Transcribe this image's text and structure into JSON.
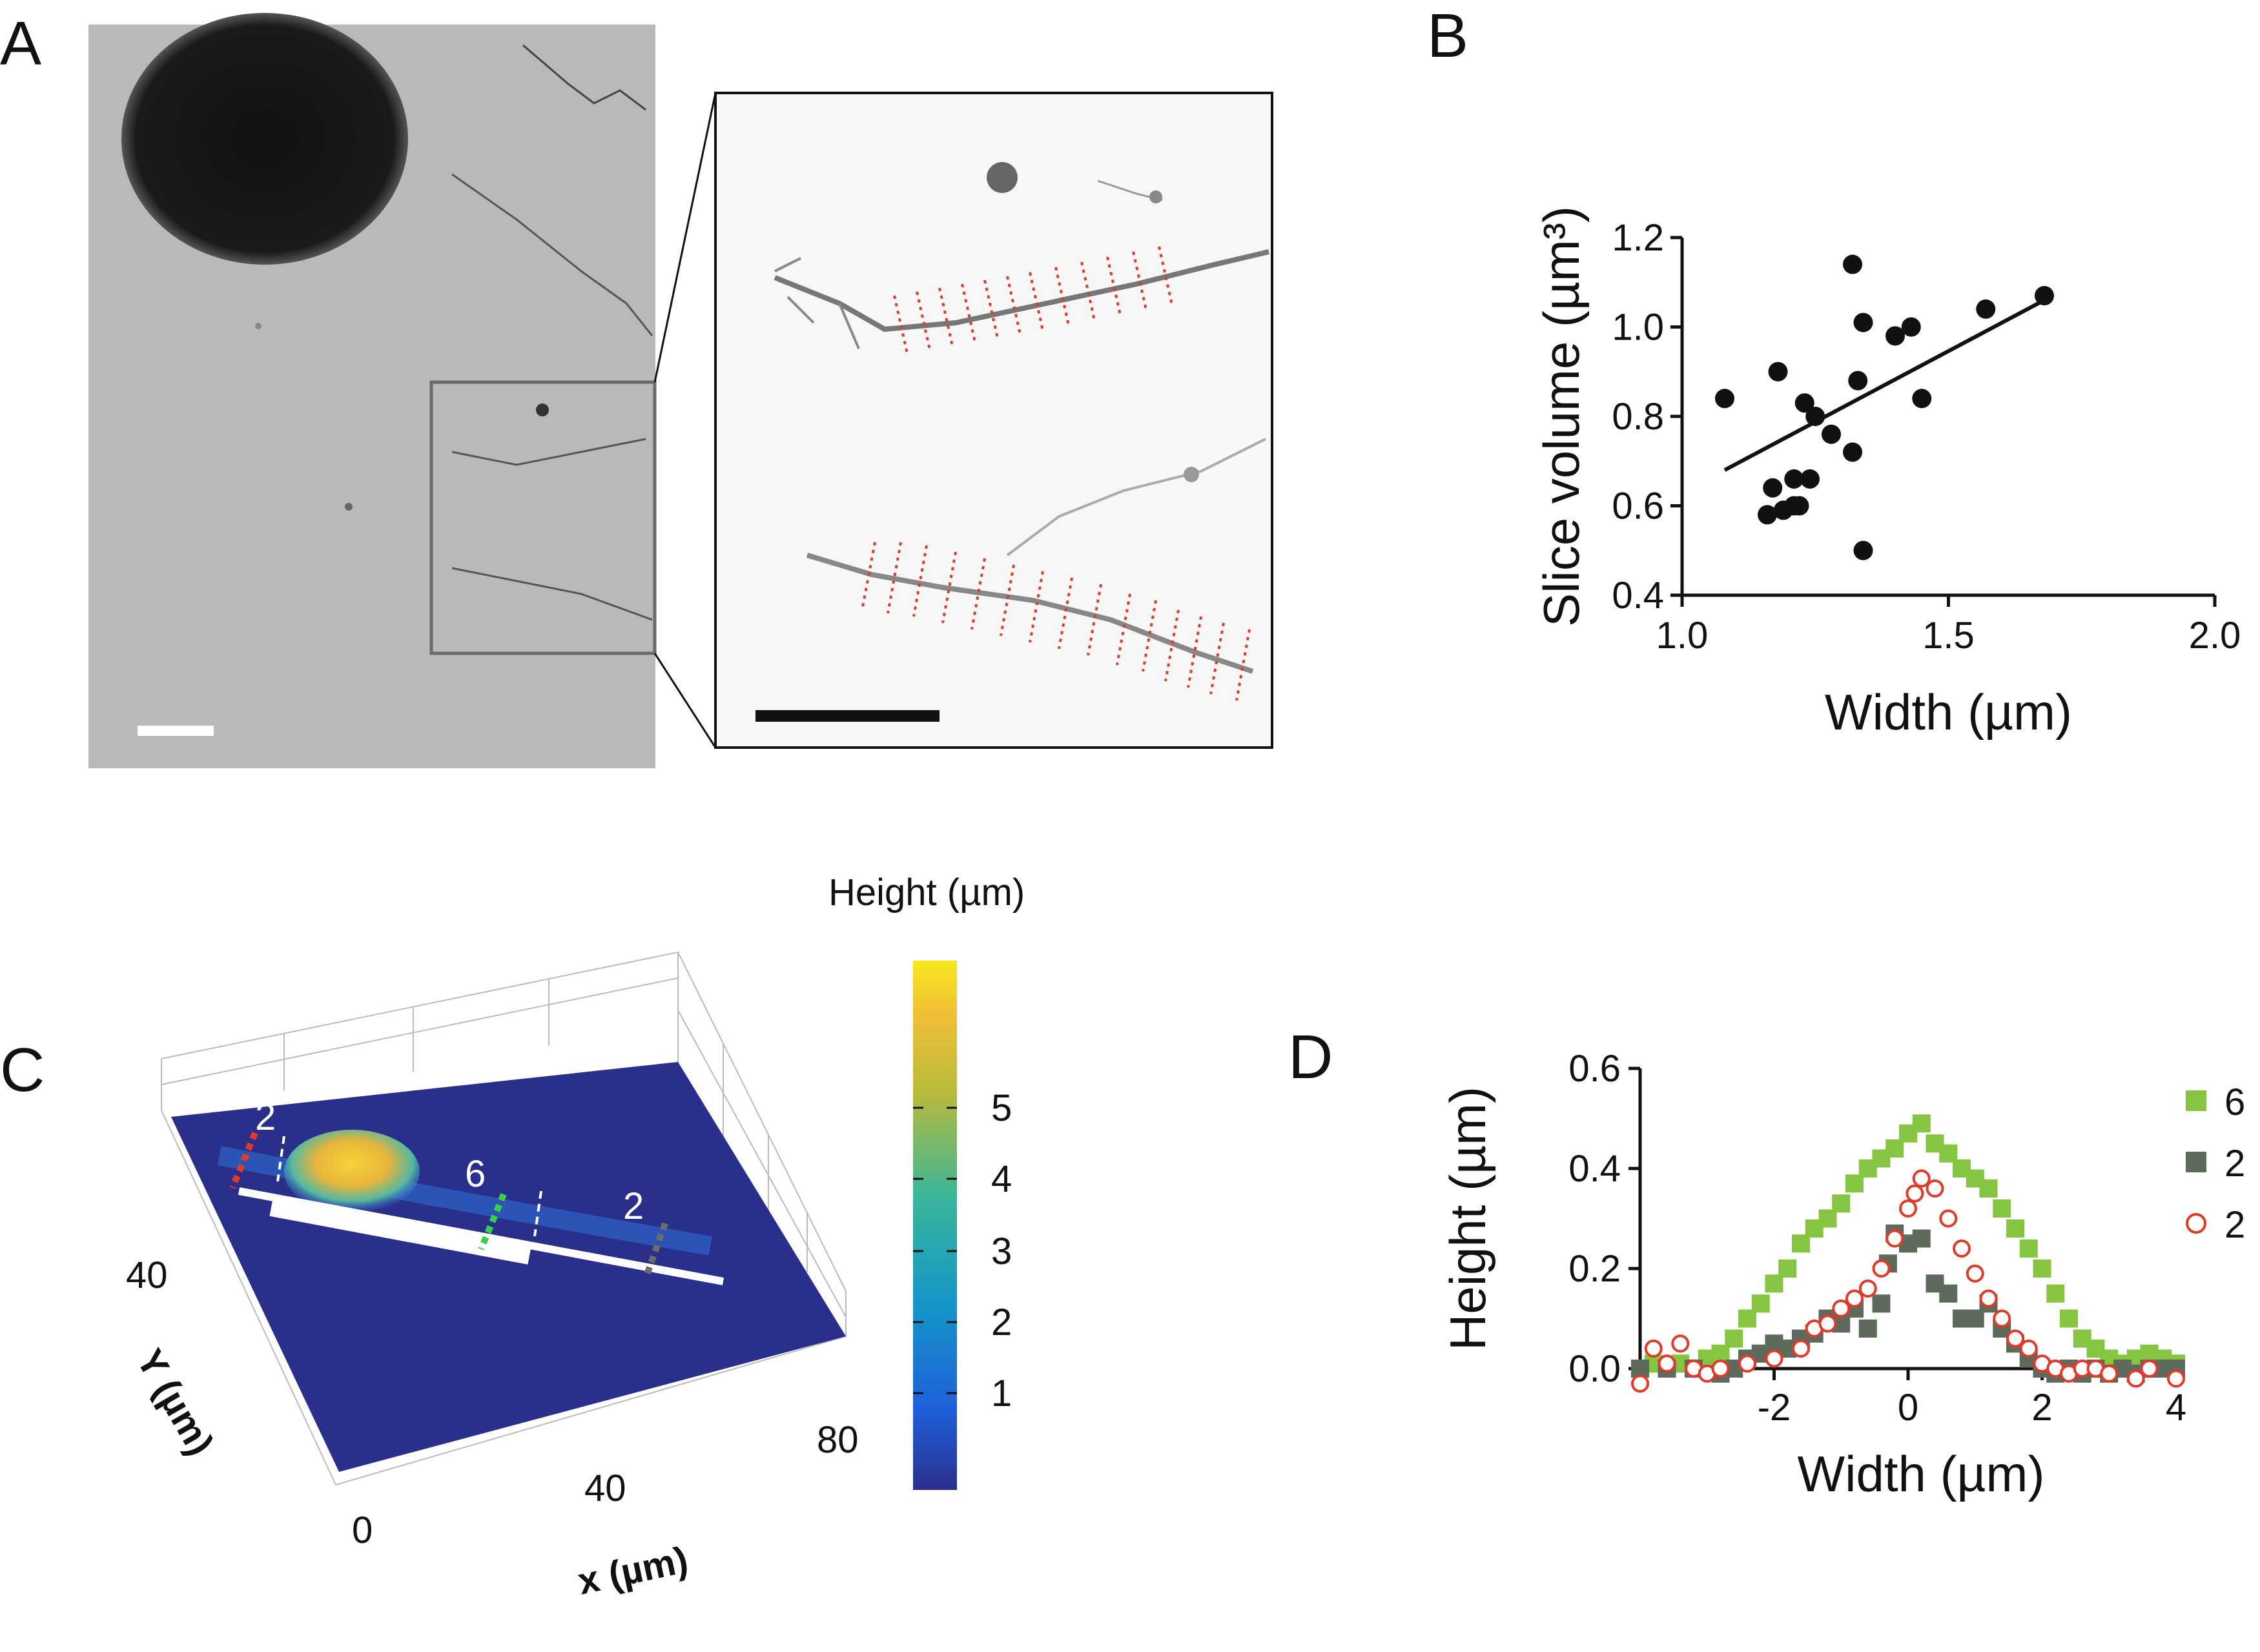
{
  "figure": {
    "panels": {
      "a": "A",
      "b": "B",
      "c": "C",
      "d": "D"
    }
  },
  "panel_c": {
    "colorbar_title": "Height (µm)",
    "colorbar_ticks": [
      "1",
      "2",
      "3",
      "4",
      "5"
    ],
    "x_axis_label": "x (µm)",
    "y_axis_label": "Y (µm)",
    "x_ticks": [
      "0",
      "40",
      "80"
    ],
    "y_ticks": [
      "40"
    ],
    "section_labels": [
      "2",
      "6",
      "2"
    ],
    "colors": {
      "background": "#2b2f8c",
      "peak": "#f0c93a",
      "red": "#e03a2a",
      "green": "#3ad14a",
      "gray": "#6b6e68"
    }
  },
  "chart_data": [
    {
      "type": "scatter",
      "panel": "B",
      "title": "",
      "xlabel": "Width (µm)",
      "ylabel": "Slice volume (µm³)",
      "xlim": [
        1.0,
        2.0
      ],
      "ylim": [
        0.4,
        1.2
      ],
      "xticks": [
        "1.0",
        "1.5",
        "2.0"
      ],
      "yticks": [
        "0.4",
        "0.6",
        "0.8",
        "1.0",
        "1.2"
      ],
      "points": [
        [
          1.08,
          0.84
        ],
        [
          1.16,
          0.58
        ],
        [
          1.17,
          0.64
        ],
        [
          1.18,
          0.9
        ],
        [
          1.19,
          0.59
        ],
        [
          1.21,
          0.6
        ],
        [
          1.21,
          0.66
        ],
        [
          1.22,
          0.6
        ],
        [
          1.23,
          0.83
        ],
        [
          1.24,
          0.66
        ],
        [
          1.25,
          0.8
        ],
        [
          1.28,
          0.76
        ],
        [
          1.32,
          0.72
        ],
        [
          1.32,
          1.14
        ],
        [
          1.33,
          0.88
        ],
        [
          1.34,
          1.01
        ],
        [
          1.34,
          0.5
        ],
        [
          1.4,
          0.98
        ],
        [
          1.43,
          1.0
        ],
        [
          1.45,
          0.84
        ],
        [
          1.57,
          1.04
        ],
        [
          1.68,
          1.07
        ]
      ],
      "fit_line": {
        "x": [
          1.08,
          1.68
        ],
        "y": [
          0.68,
          1.06
        ]
      }
    },
    {
      "type": "scatter",
      "panel": "D",
      "title": "",
      "xlabel": "Width (µm)",
      "ylabel": "Height (µm)",
      "xlim": [
        -4,
        4
      ],
      "ylim": [
        0.0,
        0.6
      ],
      "xticks": [
        "-2",
        "0",
        "2",
        "4"
      ],
      "yticks": [
        "0.0",
        "0.2",
        "0.4",
        "0.6"
      ],
      "legend_position": "right",
      "series": [
        {
          "name": "6",
          "marker": "square",
          "color": "#86c542",
          "points": [
            [
              -4.0,
              0.0
            ],
            [
              -3.8,
              0.01
            ],
            [
              -3.6,
              0.0
            ],
            [
              -3.4,
              0.01
            ],
            [
              -3.2,
              0.0
            ],
            [
              -3.0,
              0.02
            ],
            [
              -2.8,
              0.03
            ],
            [
              -2.6,
              0.06
            ],
            [
              -2.4,
              0.1
            ],
            [
              -2.2,
              0.13
            ],
            [
              -2.0,
              0.17
            ],
            [
              -1.8,
              0.2
            ],
            [
              -1.6,
              0.25
            ],
            [
              -1.4,
              0.28
            ],
            [
              -1.2,
              0.3
            ],
            [
              -1.0,
              0.33
            ],
            [
              -0.8,
              0.37
            ],
            [
              -0.6,
              0.4
            ],
            [
              -0.4,
              0.42
            ],
            [
              -0.2,
              0.44
            ],
            [
              0.0,
              0.47
            ],
            [
              0.2,
              0.49
            ],
            [
              0.4,
              0.45
            ],
            [
              0.6,
              0.43
            ],
            [
              0.8,
              0.4
            ],
            [
              1.0,
              0.38
            ],
            [
              1.2,
              0.36
            ],
            [
              1.4,
              0.32
            ],
            [
              1.6,
              0.28
            ],
            [
              1.8,
              0.24
            ],
            [
              2.0,
              0.2
            ],
            [
              2.2,
              0.15
            ],
            [
              2.4,
              0.1
            ],
            [
              2.6,
              0.06
            ],
            [
              2.8,
              0.04
            ],
            [
              3.0,
              0.02
            ],
            [
              3.2,
              0.01
            ],
            [
              3.4,
              0.02
            ],
            [
              3.6,
              0.03
            ],
            [
              3.8,
              0.02
            ],
            [
              4.0,
              0.01
            ]
          ]
        },
        {
          "name": "2",
          "marker": "square",
          "color": "#5e6a5c",
          "points": [
            [
              -4.0,
              0.0
            ],
            [
              -3.6,
              0.0
            ],
            [
              -3.2,
              0.0
            ],
            [
              -2.8,
              -0.01
            ],
            [
              -2.6,
              0.0
            ],
            [
              -2.4,
              0.02
            ],
            [
              -2.2,
              0.03
            ],
            [
              -2.0,
              0.05
            ],
            [
              -1.8,
              0.04
            ],
            [
              -1.6,
              0.06
            ],
            [
              -1.4,
              0.07
            ],
            [
              -1.2,
              0.1
            ],
            [
              -1.0,
              0.09
            ],
            [
              -0.8,
              0.12
            ],
            [
              -0.6,
              0.08
            ],
            [
              -0.4,
              0.13
            ],
            [
              -0.3,
              0.21
            ],
            [
              -0.2,
              0.27
            ],
            [
              0.0,
              0.25
            ],
            [
              0.2,
              0.26
            ],
            [
              0.4,
              0.17
            ],
            [
              0.6,
              0.15
            ],
            [
              0.8,
              0.1
            ],
            [
              1.0,
              0.1
            ],
            [
              1.2,
              0.13
            ],
            [
              1.4,
              0.08
            ],
            [
              1.6,
              0.05
            ],
            [
              1.8,
              0.02
            ],
            [
              2.0,
              0.0
            ],
            [
              2.2,
              -0.01
            ],
            [
              2.4,
              0.0
            ],
            [
              2.6,
              -0.01
            ],
            [
              2.8,
              0.0
            ],
            [
              3.0,
              -0.01
            ],
            [
              3.2,
              0.0
            ],
            [
              3.4,
              -0.01
            ],
            [
              3.6,
              0.0
            ],
            [
              3.8,
              0.0
            ],
            [
              4.0,
              0.0
            ]
          ]
        },
        {
          "name": "2",
          "marker": "open-circle",
          "color": "#e03a2a",
          "points": [
            [
              -4.0,
              -0.03
            ],
            [
              -3.8,
              0.04
            ],
            [
              -3.6,
              0.01
            ],
            [
              -3.4,
              0.05
            ],
            [
              -3.2,
              0.0
            ],
            [
              -3.0,
              -0.01
            ],
            [
              -2.8,
              0.0
            ],
            [
              -2.4,
              0.01
            ],
            [
              -2.0,
              0.02
            ],
            [
              -1.6,
              0.04
            ],
            [
              -1.4,
              0.08
            ],
            [
              -1.2,
              0.09
            ],
            [
              -1.0,
              0.12
            ],
            [
              -0.8,
              0.14
            ],
            [
              -0.6,
              0.16
            ],
            [
              -0.4,
              0.2
            ],
            [
              -0.2,
              0.26
            ],
            [
              0.0,
              0.32
            ],
            [
              0.1,
              0.35
            ],
            [
              0.2,
              0.38
            ],
            [
              0.4,
              0.36
            ],
            [
              0.6,
              0.3
            ],
            [
              0.8,
              0.24
            ],
            [
              1.0,
              0.19
            ],
            [
              1.2,
              0.14
            ],
            [
              1.4,
              0.1
            ],
            [
              1.6,
              0.06
            ],
            [
              1.8,
              0.04
            ],
            [
              2.0,
              0.01
            ],
            [
              2.2,
              0.0
            ],
            [
              2.4,
              -0.01
            ],
            [
              2.6,
              0.0
            ],
            [
              2.8,
              0.0
            ],
            [
              3.0,
              -0.01
            ],
            [
              3.4,
              -0.02
            ],
            [
              3.6,
              0.0
            ],
            [
              4.0,
              -0.02
            ]
          ]
        }
      ]
    }
  ]
}
